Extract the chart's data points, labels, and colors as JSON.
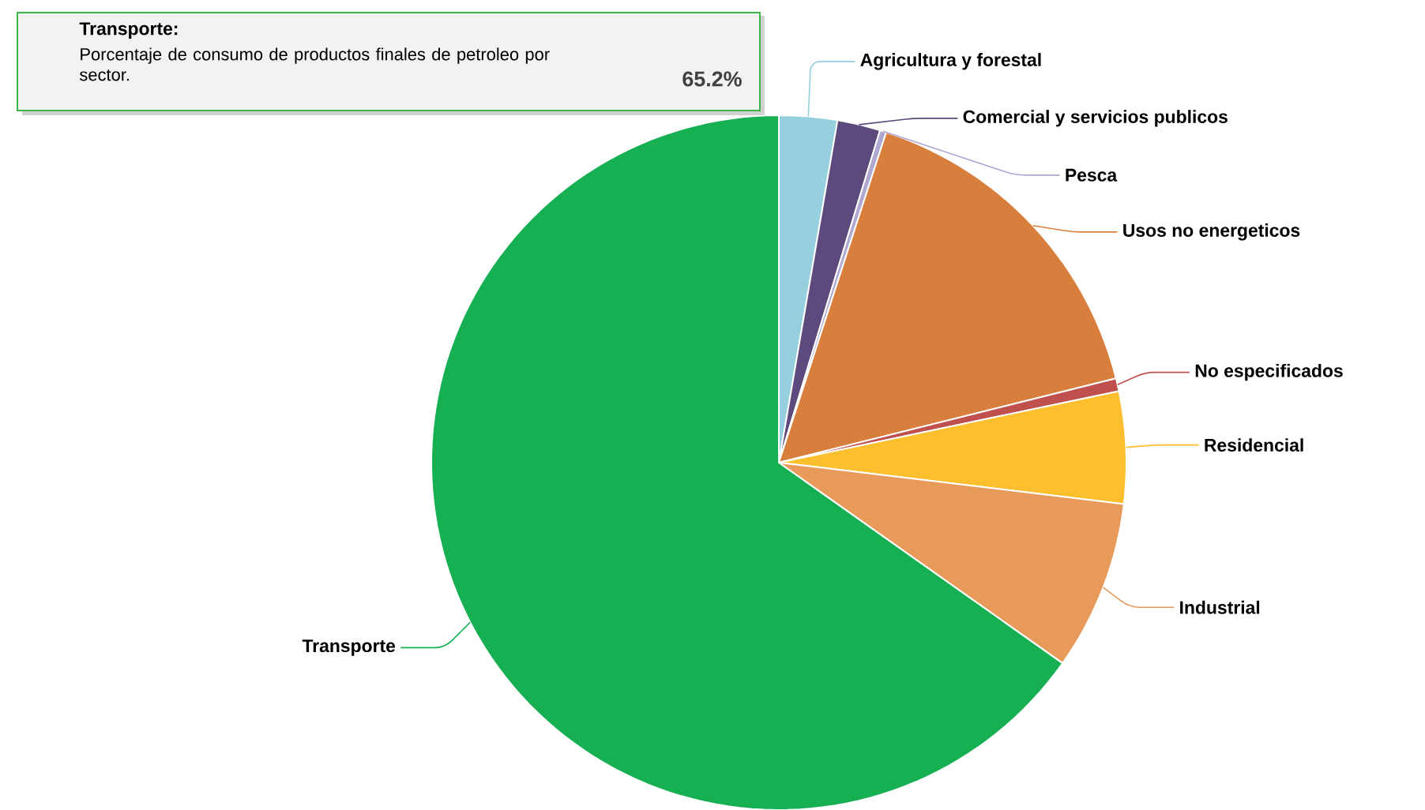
{
  "chart_data": {
    "type": "pie",
    "categories": [
      "Agricultura y forestal",
      "Comercial y servicios publicos",
      "Pesca",
      "Usos no energeticos",
      "No especificados",
      "Residencial",
      "Industrial",
      "Transporte"
    ],
    "values": [
      2.7,
      2.0,
      0.3,
      16.1,
      0.6,
      5.2,
      7.9,
      65.2
    ],
    "colors": [
      "#96d0de",
      "#5c4a7c",
      "#b0a8d0",
      "#d97f3d",
      "#c0504d",
      "#fdbf2d",
      "#e89a5a",
      "#16b053"
    ],
    "annotations": [
      "Transporte:",
      "Porcentaje de consumo de productos finales de petroleo por sector.",
      "65.2%"
    ]
  }
}
